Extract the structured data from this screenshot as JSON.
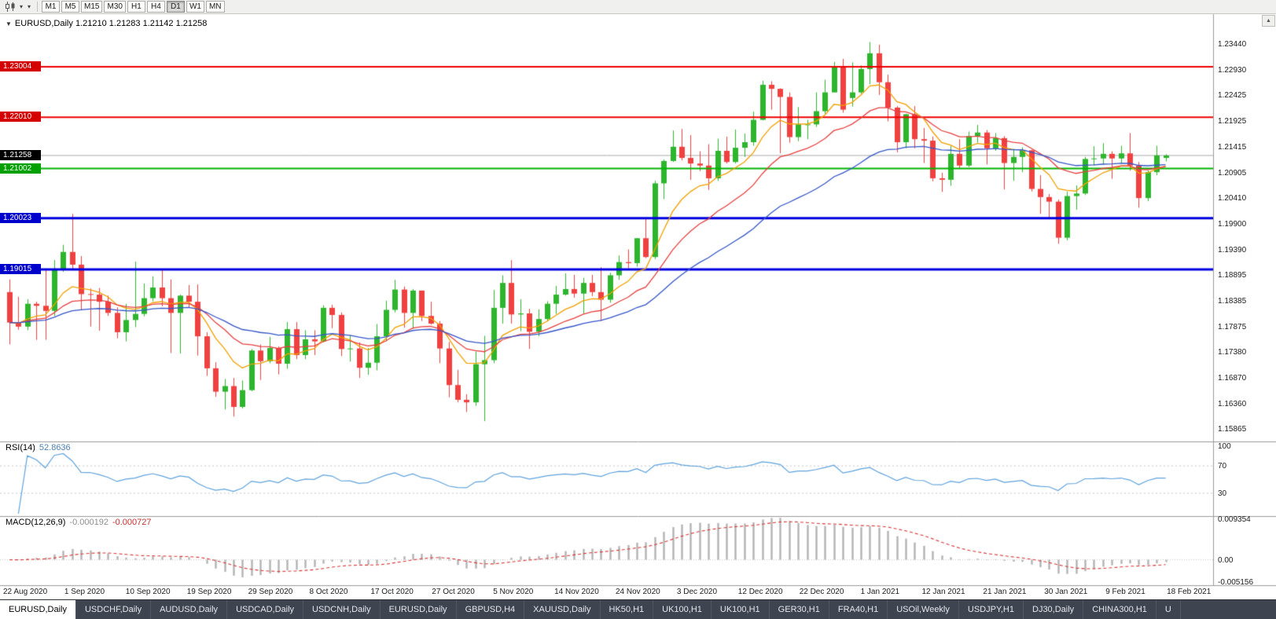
{
  "toolbar": {
    "timeframes": [
      {
        "label": "M1",
        "active": false
      },
      {
        "label": "M5",
        "active": false
      },
      {
        "label": "M15",
        "active": false
      },
      {
        "label": "M30",
        "active": false
      },
      {
        "label": "H1",
        "active": false
      },
      {
        "label": "H4",
        "active": false
      },
      {
        "label": "D1",
        "active": true
      },
      {
        "label": "W1",
        "active": false
      },
      {
        "label": "MN",
        "active": false
      }
    ],
    "dropdown_glyph": "▾"
  },
  "scrollbar": {
    "up_arrow": "▲"
  },
  "chart": {
    "marker": "▼",
    "title": "EURUSD,Daily",
    "ohlc": "1.21210 1.21283 1.21142 1.21258",
    "y_axis_labels": [
      "1.23440",
      "1.22930",
      "1.22425",
      "1.21925",
      "1.21415",
      "1.20905",
      "1.20410",
      "1.19900",
      "1.19390",
      "1.18895",
      "1.18385",
      "1.17875",
      "1.17380",
      "1.16870",
      "1.16360",
      "1.15865"
    ],
    "x_axis_labels": [
      "22 Aug 2020",
      "1 Sep 2020",
      "10 Sep 2020",
      "19 Sep 2020",
      "29 Sep 2020",
      "8 Oct 2020",
      "17 Oct 2020",
      "27 Oct 2020",
      "5 Nov 2020",
      "14 Nov 2020",
      "24 Nov 2020",
      "3 Dec 2020",
      "12 Dec 2020",
      "22 Dec 2020",
      "1 Jan 2021",
      "12 Jan 2021",
      "21 Jan 2021",
      "30 Jan 2021",
      "9 Feb 2021",
      "18 Feb 2021"
    ],
    "price_tags": [
      {
        "label": "1.23004",
        "value": 1.23004,
        "bg": "#d40000"
      },
      {
        "label": "1.22010",
        "value": 1.2201,
        "bg": "#d40000"
      },
      {
        "label": "1.21258",
        "value": 1.21258,
        "bg": "#000000"
      },
      {
        "label": "1.21002",
        "value": 1.21002,
        "bg": "#00a000"
      },
      {
        "label": "1.20023",
        "value": 1.20023,
        "bg": "#0000cc"
      },
      {
        "label": "1.19015",
        "value": 1.19015,
        "bg": "#0000cc"
      }
    ],
    "h_lines": [
      {
        "value": 1.23004,
        "color": "#ee0000",
        "width": 2
      },
      {
        "value": 1.2201,
        "color": "#ee0000",
        "width": 2
      },
      {
        "value": 1.21002,
        "color": "#00b400",
        "width": 2
      },
      {
        "value": 1.20023,
        "color": "#0000e0",
        "width": 3
      },
      {
        "value": 1.19015,
        "color": "#0000e0",
        "width": 3
      }
    ],
    "bid_line": {
      "value": 1.21258,
      "color": "#ababab"
    }
  },
  "rsi": {
    "name": "RSI(14)",
    "value": "52.8636",
    "axis_labels": [
      "100",
      "70",
      "30"
    ],
    "levels": [
      70,
      30
    ],
    "line_color": "#5fa3dc"
  },
  "macd": {
    "name": "MACD(12,26,9)",
    "value_main": "-0.000192",
    "value_signal": "-0.000727",
    "axis_labels": [
      {
        "label": "0.009354",
        "value": 0.009354
      },
      {
        "label": "0.00",
        "value": 0
      },
      {
        "label": "-0.005156",
        "value": -0.005156
      }
    ],
    "histogram_color": "#b4b4b4",
    "signal_color": "#d93636"
  },
  "tabs": [
    {
      "label": "EURUSD,Daily",
      "active": true
    },
    {
      "label": "USDCHF,Daily",
      "active": false
    },
    {
      "label": "AUDUSD,Daily",
      "active": false
    },
    {
      "label": "USDCAD,Daily",
      "active": false
    },
    {
      "label": "USDCNH,Daily",
      "active": false
    },
    {
      "label": "EURUSD,Daily",
      "active": false
    },
    {
      "label": "GBPUSD,H4",
      "active": false
    },
    {
      "label": "XAUUSD,Daily",
      "active": false
    },
    {
      "label": "HK50,H1",
      "active": false
    },
    {
      "label": "UK100,H1",
      "active": false
    },
    {
      "label": "UK100,H1",
      "active": false
    },
    {
      "label": "GER30,H1",
      "active": false
    },
    {
      "label": "FRA40,H1",
      "active": false
    },
    {
      "label": "USOil,Weekly",
      "active": false
    },
    {
      "label": "USDJPY,H1",
      "active": false
    },
    {
      "label": "DJ30,Daily",
      "active": false
    },
    {
      "label": "CHINA300,H1",
      "active": false
    },
    {
      "label": "U",
      "active": false
    }
  ],
  "chart_data": {
    "type": "candlestick",
    "title": "EURUSD,Daily",
    "symbol": "EURUSD",
    "period": "Daily",
    "price_range_top": 1.2404,
    "price_range_bottom": 1.1563,
    "bull_color": "#2db52d",
    "bear_color": "#f04040",
    "rsi_period": 14,
    "macd_params": [
      12,
      26,
      9
    ],
    "moving_averages": [
      {
        "type": "ema",
        "period": 8,
        "color": "#f2a000"
      },
      {
        "type": "ema",
        "period": 17,
        "color": "#e84040"
      },
      {
        "type": "ema",
        "period": 34,
        "color": "#3556c8"
      }
    ],
    "candles": [
      [
        1.1857,
        1.1882,
        1.1754,
        1.1797
      ],
      [
        1.1797,
        1.1848,
        1.1783,
        1.1789
      ],
      [
        1.1789,
        1.1843,
        1.1782,
        1.1834
      ],
      [
        1.1834,
        1.1838,
        1.1763,
        1.183
      ],
      [
        1.183,
        1.1901,
        1.1763,
        1.182
      ],
      [
        1.182,
        1.192,
        1.181,
        1.1903
      ],
      [
        1.1903,
        1.195,
        1.1897,
        1.1936
      ],
      [
        1.1936,
        1.2011,
        1.19,
        1.1911
      ],
      [
        1.1911,
        1.1928,
        1.1822,
        1.1853
      ],
      [
        1.1853,
        1.1864,
        1.1789,
        1.1852
      ],
      [
        1.1852,
        1.1865,
        1.1781,
        1.1838
      ],
      [
        1.1838,
        1.185,
        1.181,
        1.1816
      ],
      [
        1.1816,
        1.1827,
        1.1766,
        1.1778
      ],
      [
        1.1778,
        1.1834,
        1.176,
        1.1802
      ],
      [
        1.1802,
        1.1917,
        1.1788,
        1.1814
      ],
      [
        1.1814,
        1.1874,
        1.1809,
        1.1845
      ],
      [
        1.1845,
        1.1888,
        1.1839,
        1.1866
      ],
      [
        1.1866,
        1.19,
        1.1829,
        1.1845
      ],
      [
        1.1845,
        1.1882,
        1.1737,
        1.1816
      ],
      [
        1.1816,
        1.1852,
        1.1736,
        1.185
      ],
      [
        1.185,
        1.1871,
        1.1827,
        1.1838
      ],
      [
        1.1838,
        1.1872,
        1.1732,
        1.177
      ],
      [
        1.177,
        1.1778,
        1.1692,
        1.1707
      ],
      [
        1.1707,
        1.1719,
        1.1651,
        1.1661
      ],
      [
        1.1661,
        1.1686,
        1.1626,
        1.1672
      ],
      [
        1.1672,
        1.1688,
        1.1612,
        1.1631
      ],
      [
        1.1631,
        1.1683,
        1.1628,
        1.1664
      ],
      [
        1.1664,
        1.1745,
        1.1662,
        1.1742
      ],
      [
        1.1742,
        1.1754,
        1.1684,
        1.1721
      ],
      [
        1.1721,
        1.1769,
        1.1717,
        1.1747
      ],
      [
        1.1747,
        1.175,
        1.1695,
        1.1716
      ],
      [
        1.1716,
        1.1798,
        1.1706,
        1.1784
      ],
      [
        1.1784,
        1.1798,
        1.1725,
        1.1733
      ],
      [
        1.1733,
        1.1782,
        1.1725,
        1.1764
      ],
      [
        1.1764,
        1.1782,
        1.1733,
        1.176
      ],
      [
        1.176,
        1.1831,
        1.1758,
        1.1826
      ],
      [
        1.1826,
        1.1832,
        1.1786,
        1.1812
      ],
      [
        1.1812,
        1.1817,
        1.1731,
        1.1745
      ],
      [
        1.1745,
        1.1772,
        1.172,
        1.1746
      ],
      [
        1.1746,
        1.1758,
        1.1688,
        1.1708
      ],
      [
        1.1708,
        1.1747,
        1.1694,
        1.1718
      ],
      [
        1.1718,
        1.1794,
        1.1703,
        1.177
      ],
      [
        1.177,
        1.184,
        1.176,
        1.1822
      ],
      [
        1.1822,
        1.1881,
        1.1817,
        1.1862
      ],
      [
        1.1862,
        1.1868,
        1.1787,
        1.1816
      ],
      [
        1.1816,
        1.1863,
        1.1785,
        1.186
      ],
      [
        1.186,
        1.186,
        1.18,
        1.181
      ],
      [
        1.181,
        1.1838,
        1.1793,
        1.1795
      ],
      [
        1.1795,
        1.18,
        1.1717,
        1.1746
      ],
      [
        1.1746,
        1.1759,
        1.165,
        1.1674
      ],
      [
        1.1674,
        1.1704,
        1.164,
        1.1645
      ],
      [
        1.1645,
        1.1656,
        1.1621,
        1.164
      ],
      [
        1.164,
        1.174,
        1.1633,
        1.1715
      ],
      [
        1.1715,
        1.1771,
        1.1603,
        1.1723
      ],
      [
        1.1723,
        1.1861,
        1.1717,
        1.1826
      ],
      [
        1.1826,
        1.189,
        1.1795,
        1.1875
      ],
      [
        1.1875,
        1.192,
        1.1795,
        1.1813
      ],
      [
        1.1813,
        1.1843,
        1.178,
        1.1815
      ],
      [
        1.1815,
        1.1824,
        1.1745,
        1.1779
      ],
      [
        1.1779,
        1.1823,
        1.177,
        1.1804
      ],
      [
        1.1804,
        1.1839,
        1.1799,
        1.1834
      ],
      [
        1.1834,
        1.1869,
        1.1814,
        1.1852
      ],
      [
        1.1852,
        1.1894,
        1.185,
        1.1863
      ],
      [
        1.1863,
        1.1891,
        1.1846,
        1.1854
      ],
      [
        1.1854,
        1.1885,
        1.1815,
        1.1875
      ],
      [
        1.1875,
        1.1891,
        1.1849,
        1.1857
      ],
      [
        1.1857,
        1.1906,
        1.18,
        1.1842
      ],
      [
        1.1842,
        1.1895,
        1.1836,
        1.189
      ],
      [
        1.189,
        1.1929,
        1.1881,
        1.1916
      ],
      [
        1.1916,
        1.1941,
        1.1904,
        1.1914
      ],
      [
        1.1914,
        1.1963,
        1.1907,
        1.1963
      ],
      [
        1.1963,
        1.2003,
        1.1924,
        1.1926
      ],
      [
        1.1926,
        1.2076,
        1.1922,
        1.2071
      ],
      [
        1.2071,
        1.2118,
        1.204,
        1.2115
      ],
      [
        1.2115,
        1.2175,
        1.2113,
        1.2143
      ],
      [
        1.2143,
        1.2178,
        1.2116,
        1.2121
      ],
      [
        1.2121,
        1.2166,
        1.2078,
        1.211
      ],
      [
        1.211,
        1.2134,
        1.2095,
        1.2106
      ],
      [
        1.2106,
        1.2148,
        1.2058,
        1.2081
      ],
      [
        1.2081,
        1.2159,
        1.2076,
        1.2135
      ],
      [
        1.2135,
        1.2163,
        1.211,
        1.2113
      ],
      [
        1.2113,
        1.2177,
        1.211,
        1.2141
      ],
      [
        1.2141,
        1.2169,
        1.2123,
        1.2152
      ],
      [
        1.2152,
        1.2212,
        1.2145,
        1.2196
      ],
      [
        1.2196,
        1.2273,
        1.2195,
        1.2265
      ],
      [
        1.2265,
        1.2272,
        1.2216,
        1.2257
      ],
      [
        1.2257,
        1.2258,
        1.213,
        1.2241
      ],
      [
        1.2241,
        1.225,
        1.2151,
        1.2162
      ],
      [
        1.2162,
        1.2221,
        1.2154,
        1.2187
      ],
      [
        1.2187,
        1.2196,
        1.2158,
        1.2187
      ],
      [
        1.2187,
        1.225,
        1.2182,
        1.2213
      ],
      [
        1.2213,
        1.2275,
        1.2208,
        1.225
      ],
      [
        1.225,
        1.231,
        1.225,
        1.2299
      ],
      [
        1.2299,
        1.2316,
        1.221,
        1.2216
      ],
      [
        1.2239,
        1.2309,
        1.2222,
        1.225
      ],
      [
        1.225,
        1.2303,
        1.2247,
        1.2296
      ],
      [
        1.2296,
        1.2349,
        1.2266,
        1.2327
      ],
      [
        1.2327,
        1.2344,
        1.2245,
        1.227
      ],
      [
        1.227,
        1.2285,
        1.2193,
        1.222
      ],
      [
        1.222,
        1.2223,
        1.2132,
        1.2152
      ],
      [
        1.2152,
        1.2208,
        1.214,
        1.2207
      ],
      [
        1.2207,
        1.2223,
        1.214,
        1.2158
      ],
      [
        1.2158,
        1.218,
        1.2111,
        1.2155
      ],
      [
        1.2155,
        1.2163,
        1.2075,
        1.2081
      ],
      [
        1.2081,
        1.2092,
        1.2054,
        1.2078
      ],
      [
        1.2078,
        1.2145,
        1.2066,
        1.2129
      ],
      [
        1.2129,
        1.2158,
        1.2101,
        1.2106
      ],
      [
        1.2106,
        1.2173,
        1.2103,
        1.2164
      ],
      [
        1.2164,
        1.2186,
        1.2151,
        1.2171
      ],
      [
        1.2171,
        1.2176,
        1.2108,
        1.214
      ],
      [
        1.214,
        1.217,
        1.2135,
        1.216
      ],
      [
        1.216,
        1.2164,
        1.2059,
        1.2111
      ],
      [
        1.2111,
        1.2139,
        1.2076,
        1.2123
      ],
      [
        1.2123,
        1.2142,
        1.2093,
        1.2136
      ],
      [
        1.2136,
        1.2137,
        1.2055,
        1.206
      ],
      [
        1.206,
        1.2087,
        1.2011,
        1.2044
      ],
      [
        1.2044,
        1.205,
        1.2003,
        1.2035
      ],
      [
        1.2035,
        1.2039,
        1.1952,
        1.1964
      ],
      [
        1.1964,
        1.2055,
        1.1959,
        1.2046
      ],
      [
        1.2046,
        1.2067,
        1.2019,
        1.2051
      ],
      [
        1.2051,
        1.2123,
        1.2048,
        1.2119
      ],
      [
        1.2119,
        1.2144,
        1.2106,
        1.212
      ],
      [
        1.212,
        1.215,
        1.2108,
        1.2129
      ],
      [
        1.2129,
        1.2134,
        1.208,
        1.212
      ],
      [
        1.212,
        1.2145,
        1.211,
        1.213
      ],
      [
        1.213,
        1.217,
        1.2096,
        1.2106
      ],
      [
        1.2106,
        1.2113,
        1.2023,
        1.2042
      ],
      [
        1.2042,
        1.2096,
        1.2036,
        1.2093
      ],
      [
        1.2093,
        1.2145,
        1.2087,
        1.2126
      ],
      [
        1.2121,
        1.21283,
        1.21142,
        1.21258
      ]
    ]
  }
}
